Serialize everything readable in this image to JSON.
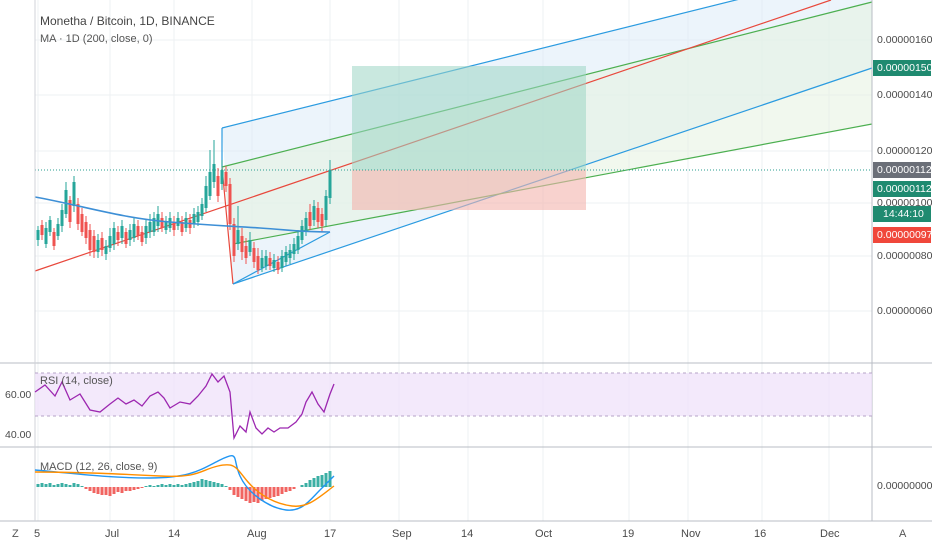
{
  "header": {
    "title": "Monetha / Bitcoin, 1D, BINANCE",
    "ma_label": "MA · 1D (200, close, 0)"
  },
  "indicators": {
    "rsi_label": "RSI (14, close)",
    "macd_label": "MACD (12, 26, close, 9)"
  },
  "price_axis": {
    "labels": [
      "0.00000160",
      "0.00000140",
      "0.00000120",
      "0.00000100",
      "0.00000080",
      "0.00000060"
    ],
    "tags": [
      {
        "text": "0.00000150",
        "color": "#1f8a70"
      },
      {
        "text": "0.00000112",
        "color": "#6b6f78"
      },
      {
        "text": "0.00000112",
        "color": "#1f8a70"
      },
      {
        "text": "14:44:10",
        "color": "#1f8a70"
      },
      {
        "text": "0.00000097",
        "color": "#f0473b"
      }
    ]
  },
  "rsi_axis": {
    "labels": [
      "60.00",
      "40.00"
    ]
  },
  "macd_axis": {
    "labels": [
      "0.00000000"
    ]
  },
  "time_axis": {
    "labels": [
      "5",
      "Jul",
      "14",
      "Aug",
      "17",
      "Sep",
      "14",
      "Oct",
      "19",
      "Nov",
      "16",
      "Dec"
    ]
  },
  "corner_buttons": {
    "left": "Z",
    "right": "A"
  },
  "colors": {
    "up": "#26a69a",
    "down": "#ef5350",
    "ma": "#3d8fd6",
    "pitchfork_median": "#e8483c",
    "pitchfork_inner": "#4caf50",
    "pitchfork_outer": "#2b9be0",
    "rsi": "#9c27b0",
    "macd": "#2196f3",
    "signal": "#ff8f00"
  }
}
